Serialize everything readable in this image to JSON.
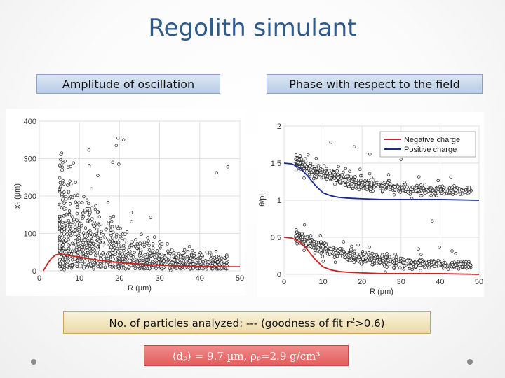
{
  "slide": {
    "title": "Regolith simulant",
    "left_label": "Amplitude of oscillation",
    "right_label": "Phase with respect to the field",
    "footer_prefix": "No. of particles analyzed: --- (goodness of fit r",
    "footer_sup": "2",
    "footer_suffix": ">0.6)",
    "formula": "⟨dₚ⟩ = 9.7 µm, ρₚ=2.9 g/cm³"
  },
  "chart_data": [
    {
      "type": "scatter",
      "title": "",
      "xlabel": "R (μm)",
      "ylabel": "x₀ (μm)",
      "xlim": [
        0,
        50
      ],
      "ylim": [
        0,
        400
      ],
      "x_ticks": [
        "0",
        "10",
        "20",
        "30",
        "40",
        "50"
      ],
      "y_ticks": [
        "0",
        "100",
        "200",
        "300",
        "400"
      ],
      "grid": true,
      "series": [
        {
          "kind": "points",
          "color": "#333333",
          "note_points": [
            [
              19.6,
              355
            ],
            [
              21.0,
              350
            ],
            [
              19.2,
              335
            ],
            [
              18.3,
              290
            ],
            [
              19.8,
              285
            ],
            [
              44.2,
              262
            ],
            [
              47.0,
              278
            ]
          ],
          "cloud_xrange": [
            5,
            47
          ]
        },
        {
          "kind": "curve",
          "color": "#cc2222",
          "x": [
            1,
            2,
            3,
            4,
            5,
            6,
            7,
            8,
            10,
            12,
            15,
            20,
            25,
            30,
            35,
            40,
            45,
            50
          ],
          "y": [
            0,
            18,
            33,
            42,
            45,
            44,
            42,
            40,
            37,
            33,
            28,
            22,
            18,
            15,
            13,
            12,
            11,
            11
          ]
        }
      ]
    },
    {
      "type": "scatter",
      "title": "",
      "xlabel": "R (μm)",
      "ylabel": "θ/pi",
      "xlim": [
        0,
        50
      ],
      "ylim": [
        0,
        2
      ],
      "x_ticks": [
        "0",
        "10",
        "20",
        "30",
        "40",
        "50"
      ],
      "y_ticks": [
        "0",
        "0.5",
        "1",
        "1.5",
        "2"
      ],
      "grid": true,
      "legend_position": "top-right",
      "series": [
        {
          "name": "Negative charge",
          "color": "#cc2222",
          "x": [
            0,
            2,
            4,
            6,
            8,
            10,
            12,
            14,
            16,
            20,
            25,
            30,
            40,
            50
          ],
          "y": [
            0.5,
            0.49,
            0.44,
            0.33,
            0.2,
            0.1,
            0.06,
            0.04,
            0.03,
            0.02,
            0.01,
            0.01,
            0.01,
            0.0
          ]
        },
        {
          "name": "Positive charge",
          "color": "#1a2a8c",
          "x": [
            0,
            2,
            4,
            6,
            8,
            10,
            12,
            14,
            16,
            20,
            25,
            30,
            40,
            50
          ],
          "y": [
            1.5,
            1.49,
            1.44,
            1.33,
            1.2,
            1.1,
            1.06,
            1.04,
            1.03,
            1.02,
            1.01,
            1.01,
            1.01,
            1.0
          ]
        }
      ],
      "scatter_bands": [
        {
          "x_start": 3,
          "x_end": 48,
          "y_start": 1.52,
          "y_end": 1.12
        },
        {
          "x_start": 3,
          "x_end": 48,
          "y_start": 0.52,
          "y_end": 0.12
        }
      ]
    }
  ]
}
